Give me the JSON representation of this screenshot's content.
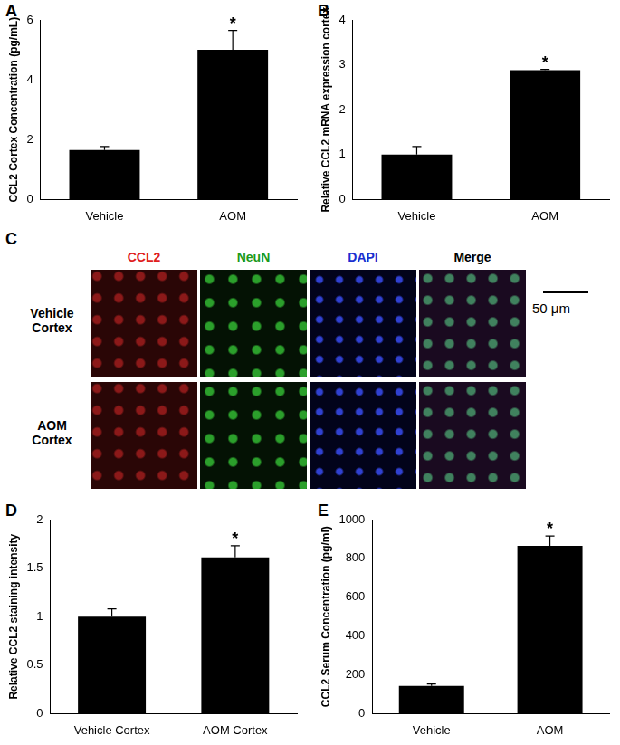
{
  "chart_data": [
    {
      "panel": "A",
      "type": "bar",
      "categories": [
        "Vehicle",
        "AOM"
      ],
      "values": [
        1.65,
        5.0
      ],
      "error": [
        0.12,
        0.65
      ],
      "color": "#000000",
      "y_label": "CCL2 Cortex Concentration (pg/mL)",
      "ylim": [
        0,
        6
      ],
      "yticks": [
        0,
        2,
        4,
        6
      ],
      "grid": false,
      "annotations": [
        {
          "category": "AOM",
          "text": "*"
        }
      ]
    },
    {
      "panel": "B",
      "type": "bar",
      "categories": [
        "Vehicle",
        "AOM"
      ],
      "values": [
        1.0,
        2.88
      ],
      "error": [
        0.18,
        0.02
      ],
      "color": "#000000",
      "y_label": "Relative CCL2 mRNA expression cortex",
      "ylim": [
        0,
        4
      ],
      "yticks": [
        0,
        1,
        2,
        3,
        4
      ],
      "grid": false,
      "annotations": [
        {
          "category": "AOM",
          "text": "*"
        }
      ]
    },
    {
      "panel": "D",
      "type": "bar",
      "categories": [
        "Vehicle Cortex",
        "AOM Cortex"
      ],
      "values": [
        1.0,
        1.61
      ],
      "error": [
        0.08,
        0.12
      ],
      "color": "#000000",
      "y_label": "Relative CCL2 staining intensity",
      "ylim": [
        0,
        2
      ],
      "yticks": [
        0,
        0.5,
        1,
        1.5,
        2
      ],
      "grid": false,
      "annotations": [
        {
          "category": "AOM Cortex",
          "text": "*"
        }
      ]
    },
    {
      "panel": "E",
      "type": "bar",
      "categories": [
        "Vehicle",
        "AOM"
      ],
      "values": [
        143,
        865
      ],
      "error": [
        10,
        50
      ],
      "color": "#000000",
      "y_label": "CCL2 Serum Concentration (pg/ml)",
      "ylim": [
        0,
        1000
      ],
      "yticks": [
        0,
        200,
        400,
        600,
        800,
        1000
      ],
      "grid": false,
      "annotations": [
        {
          "category": "AOM",
          "text": "*"
        }
      ]
    }
  ],
  "image_panel": {
    "panel": "C",
    "columns": [
      "CCL2",
      "NeuN",
      "DAPI",
      "Merge"
    ],
    "rows": [
      "Vehicle Cortex",
      "AOM Cortex"
    ],
    "scale_bar": "50 μm"
  }
}
